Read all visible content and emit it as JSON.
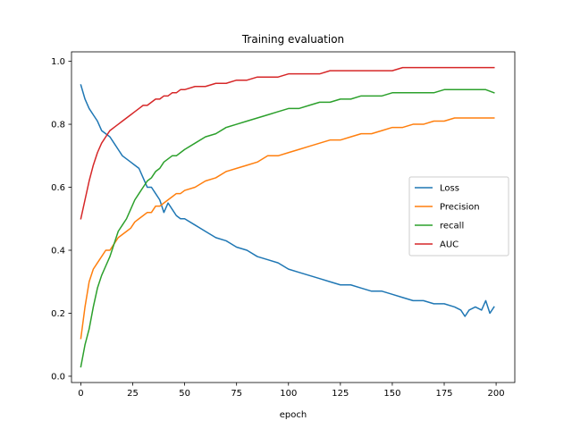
{
  "chart_data": {
    "type": "line",
    "title": "Training evaluation",
    "xlabel": "epoch",
    "ylabel": "",
    "xlim": [
      -4.5,
      209
    ],
    "ylim": [
      -0.02,
      1.03
    ],
    "xticks": [
      0,
      25,
      50,
      75,
      100,
      125,
      150,
      175,
      200
    ],
    "yticks": [
      0.0,
      0.2,
      0.4,
      0.6,
      0.8,
      1.0
    ],
    "ytick_labels": [
      "0.0",
      "0.2",
      "0.4",
      "0.6",
      "0.8",
      "1.0"
    ],
    "grid": false,
    "legend_position": "center-right",
    "series": [
      {
        "name": "Loss",
        "color": "#1f77b4",
        "x": [
          0,
          2,
          4,
          6,
          8,
          10,
          12,
          14,
          16,
          18,
          20,
          22,
          24,
          26,
          28,
          30,
          32,
          34,
          36,
          38,
          40,
          42,
          44,
          46,
          48,
          50,
          55,
          60,
          65,
          70,
          75,
          80,
          85,
          90,
          95,
          100,
          105,
          110,
          115,
          120,
          125,
          130,
          135,
          140,
          145,
          150,
          155,
          160,
          165,
          170,
          175,
          180,
          183,
          185,
          187,
          190,
          193,
          195,
          197,
          199
        ],
        "y": [
          0.925,
          0.88,
          0.85,
          0.83,
          0.81,
          0.78,
          0.77,
          0.76,
          0.74,
          0.72,
          0.7,
          0.69,
          0.68,
          0.67,
          0.66,
          0.63,
          0.6,
          0.6,
          0.58,
          0.56,
          0.52,
          0.55,
          0.53,
          0.51,
          0.5,
          0.5,
          0.48,
          0.46,
          0.44,
          0.43,
          0.41,
          0.4,
          0.38,
          0.37,
          0.36,
          0.34,
          0.33,
          0.32,
          0.31,
          0.3,
          0.29,
          0.29,
          0.28,
          0.27,
          0.27,
          0.26,
          0.25,
          0.24,
          0.24,
          0.23,
          0.23,
          0.22,
          0.21,
          0.19,
          0.21,
          0.22,
          0.21,
          0.24,
          0.2,
          0.22
        ]
      },
      {
        "name": "Precision",
        "color": "#ff7f0e",
        "x": [
          0,
          2,
          4,
          6,
          8,
          10,
          12,
          14,
          16,
          18,
          20,
          22,
          24,
          26,
          28,
          30,
          32,
          34,
          36,
          38,
          40,
          42,
          44,
          46,
          48,
          50,
          55,
          60,
          65,
          70,
          75,
          80,
          85,
          90,
          95,
          100,
          105,
          110,
          115,
          120,
          125,
          130,
          135,
          140,
          145,
          150,
          155,
          160,
          165,
          170,
          175,
          180,
          185,
          190,
          195,
          199
        ],
        "y": [
          0.12,
          0.22,
          0.3,
          0.34,
          0.36,
          0.38,
          0.4,
          0.4,
          0.42,
          0.44,
          0.45,
          0.46,
          0.47,
          0.49,
          0.5,
          0.51,
          0.52,
          0.52,
          0.54,
          0.54,
          0.55,
          0.56,
          0.57,
          0.58,
          0.58,
          0.59,
          0.6,
          0.62,
          0.63,
          0.65,
          0.66,
          0.67,
          0.68,
          0.7,
          0.7,
          0.71,
          0.72,
          0.73,
          0.74,
          0.75,
          0.75,
          0.76,
          0.77,
          0.77,
          0.78,
          0.79,
          0.79,
          0.8,
          0.8,
          0.81,
          0.81,
          0.82,
          0.82,
          0.82,
          0.82,
          0.82
        ]
      },
      {
        "name": "recall",
        "color": "#2ca02c",
        "x": [
          0,
          2,
          4,
          6,
          8,
          10,
          12,
          14,
          16,
          18,
          20,
          22,
          24,
          26,
          28,
          30,
          32,
          34,
          36,
          38,
          40,
          42,
          44,
          46,
          48,
          50,
          55,
          60,
          65,
          70,
          75,
          80,
          85,
          90,
          95,
          100,
          105,
          110,
          115,
          120,
          125,
          130,
          135,
          140,
          145,
          150,
          155,
          160,
          165,
          170,
          175,
          180,
          185,
          190,
          195,
          199
        ],
        "y": [
          0.03,
          0.1,
          0.15,
          0.22,
          0.28,
          0.32,
          0.35,
          0.38,
          0.42,
          0.46,
          0.48,
          0.5,
          0.53,
          0.56,
          0.58,
          0.6,
          0.62,
          0.63,
          0.65,
          0.66,
          0.68,
          0.69,
          0.7,
          0.7,
          0.71,
          0.72,
          0.74,
          0.76,
          0.77,
          0.79,
          0.8,
          0.81,
          0.82,
          0.83,
          0.84,
          0.85,
          0.85,
          0.86,
          0.87,
          0.87,
          0.88,
          0.88,
          0.89,
          0.89,
          0.89,
          0.9,
          0.9,
          0.9,
          0.9,
          0.9,
          0.91,
          0.91,
          0.91,
          0.91,
          0.91,
          0.9
        ]
      },
      {
        "name": "AUC",
        "color": "#d62728",
        "x": [
          0,
          2,
          4,
          6,
          8,
          10,
          12,
          14,
          16,
          18,
          20,
          22,
          24,
          26,
          28,
          30,
          32,
          34,
          36,
          38,
          40,
          42,
          44,
          46,
          48,
          50,
          55,
          60,
          65,
          70,
          75,
          80,
          85,
          90,
          95,
          100,
          105,
          110,
          115,
          120,
          125,
          130,
          135,
          140,
          145,
          150,
          155,
          160,
          165,
          170,
          175,
          180,
          185,
          190,
          195,
          199
        ],
        "y": [
          0.5,
          0.56,
          0.62,
          0.67,
          0.71,
          0.74,
          0.76,
          0.78,
          0.79,
          0.8,
          0.81,
          0.82,
          0.83,
          0.84,
          0.85,
          0.86,
          0.86,
          0.87,
          0.88,
          0.88,
          0.89,
          0.89,
          0.9,
          0.9,
          0.91,
          0.91,
          0.92,
          0.92,
          0.93,
          0.93,
          0.94,
          0.94,
          0.95,
          0.95,
          0.95,
          0.96,
          0.96,
          0.96,
          0.96,
          0.97,
          0.97,
          0.97,
          0.97,
          0.97,
          0.97,
          0.97,
          0.98,
          0.98,
          0.98,
          0.98,
          0.98,
          0.98,
          0.98,
          0.98,
          0.98,
          0.98
        ]
      }
    ]
  }
}
